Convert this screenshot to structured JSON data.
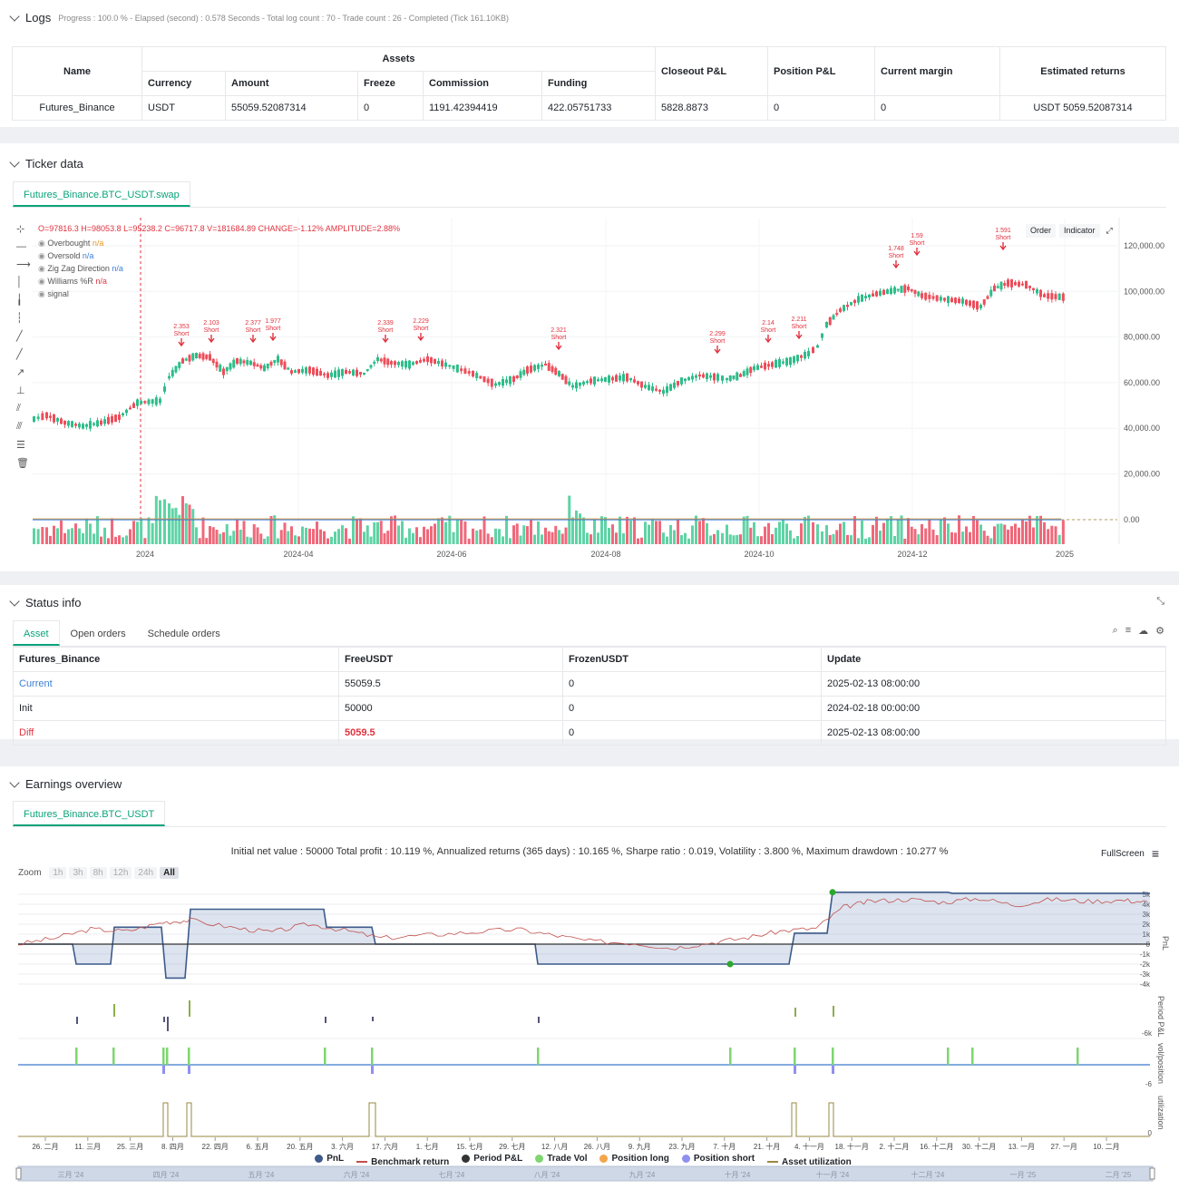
{
  "logs": {
    "title": "Logs",
    "progress": "Progress : 100.0 % - Elapsed (second) : 0.578  Seconds - Total log count : 70 - Trade count : 26 - Completed (Tick 161.10KB)",
    "table": {
      "name_header": "Name",
      "assets_header": "Assets",
      "sub_headers": [
        "Currency",
        "Amount",
        "Freeze",
        "Commission",
        "Funding"
      ],
      "other_headers": [
        "Closeout P&L",
        "Position P&L",
        "Current margin",
        "Estimated returns"
      ],
      "row": {
        "name": "Futures_Binance",
        "currency": "USDT",
        "amount": "55059.52087314",
        "freeze": "0",
        "commission": "1191.42394419",
        "funding": "422.05751733",
        "closeout": "5828.8873",
        "position": "0",
        "margin": "0",
        "returns": "USDT 5059.52087314"
      }
    }
  },
  "ticker": {
    "title": "Ticker data",
    "tab": "Futures_Binance.BTC_USDT.swap",
    "ohlc": "O=97816.3 H=98053.8 L=95238.2 C=96717.8 V=181684.89 CHANGE=-1.12% AMPLITUDE=2.88%",
    "indicators": [
      {
        "name": "Overbought",
        "value": "n/a",
        "color": "#e69a28"
      },
      {
        "name": "Oversold",
        "value": "n/a",
        "color": "#3c7fd6"
      },
      {
        "name": "Zig Zag Direction",
        "value": "n/a",
        "color": "#3c7fd6"
      },
      {
        "name": "Williams %R",
        "value": "n/a",
        "color": "#e0323e"
      },
      {
        "name": "signal",
        "value": "",
        "color": "#888"
      }
    ],
    "buttons": [
      "Order",
      "Indicator"
    ],
    "y_ticks": [
      "120,000.00",
      "100,000.00",
      "80,000.00",
      "60,000.00",
      "40,000.00",
      "20,000.00",
      "0.00"
    ],
    "x_ticks": [
      "2024",
      "2024-04",
      "2024-06",
      "2024-08",
      "2024-10",
      "2024-12",
      "2025"
    ],
    "signals": [
      {
        "value": "2.353",
        "label": "Short"
      },
      {
        "value": "2.103",
        "label": "Short"
      },
      {
        "value": "2.377",
        "label": "Short"
      },
      {
        "value": "1.977",
        "label": "Short"
      },
      {
        "value": "2.339",
        "label": "Short"
      },
      {
        "value": "2.229",
        "label": "Short"
      },
      {
        "value": "2.321",
        "label": "Short"
      },
      {
        "value": "2.299",
        "label": "Short"
      },
      {
        "value": "2.14",
        "label": "Short"
      },
      {
        "value": "2.211",
        "label": "Short"
      },
      {
        "value": "1.748",
        "label": "Short"
      },
      {
        "value": "1.59",
        "label": "Short"
      },
      {
        "value": "1.591",
        "label": "Short"
      }
    ]
  },
  "status": {
    "title": "Status info",
    "tabs": [
      "Asset",
      "Open orders",
      "Schedule orders"
    ],
    "headers": [
      "Futures_Binance",
      "FreeUSDT",
      "FrozenUSDT",
      "Update"
    ],
    "rows": [
      {
        "label": "Current",
        "free": "55059.5",
        "frozen": "0",
        "update": "2025-02-13 08:00:00"
      },
      {
        "label": "Init",
        "free": "50000",
        "frozen": "0",
        "update": "2024-02-18 00:00:00"
      },
      {
        "label": "Diff",
        "free": "5059.5",
        "frozen": "0",
        "update": "2025-02-13 08:00:00"
      }
    ]
  },
  "earnings": {
    "title": "Earnings overview",
    "tab": "Futures_Binance.BTC_USDT",
    "summary": "Initial net value : 50000  Total profit : 10.119 %,  Annualized returns (365 days) : 10.165 %,  Sharpe ratio : 0.019,  Volatility : 3.800 %,  Maximum drawdown : 10.277 %",
    "fullscreen": "FullScreen",
    "zoom_label": "Zoom",
    "zoom_options": [
      "1h",
      "3h",
      "8h",
      "12h",
      "24h",
      "All"
    ],
    "pnl_ticks": [
      "5k",
      "4k",
      "3k",
      "2k",
      "1k",
      "0",
      "-1k",
      "-2k",
      "-3k",
      "-4k"
    ],
    "axis_labels": [
      "PnL",
      "Period P&L",
      "vol/position",
      "utilization"
    ],
    "side_ticks": [
      "-6k",
      "-6",
      "0"
    ],
    "x_ticks": [
      "26. 二月",
      "11. 三月",
      "25. 三月",
      "8. 四月",
      "22. 四月",
      "6. 五月",
      "20. 五月",
      "3. 六月",
      "17. 六月",
      "1. 七月",
      "15. 七月",
      "29. 七月",
      "12. 八月",
      "26. 八月",
      "9. 九月",
      "23. 九月",
      "7. 十月",
      "21. 十月",
      "4. 十一月",
      "18. 十一月",
      "2. 十二月",
      "16. 十二月",
      "30. 十二月",
      "13. 一月",
      "27. 一月",
      "10. 二月"
    ],
    "legend": [
      {
        "name": "PnL",
        "color": "#3d5a8a",
        "shape": "dot"
      },
      {
        "name": "Benchmark return",
        "color": "#c0504d",
        "shape": "line"
      },
      {
        "name": "Period P&L",
        "color": "#333333",
        "shape": "dot"
      },
      {
        "name": "Trade Vol",
        "color": "#7ed66f",
        "shape": "dot"
      },
      {
        "name": "Position long",
        "color": "#f5a54a",
        "shape": "dot"
      },
      {
        "name": "Position short",
        "color": "#8f8ff0",
        "shape": "dot"
      },
      {
        "name": "Asset utilization",
        "color": "#9a8a40",
        "shape": "line"
      }
    ],
    "nav_labels": [
      "三月 '24",
      "四月 '24",
      "五月 '24",
      "六月 '24",
      "七月 '24",
      "八月 '24",
      "九月 '24",
      "十月 '24",
      "十一月 '24",
      "十二月 '24",
      "一月 '25",
      "二月 '25"
    ]
  }
}
